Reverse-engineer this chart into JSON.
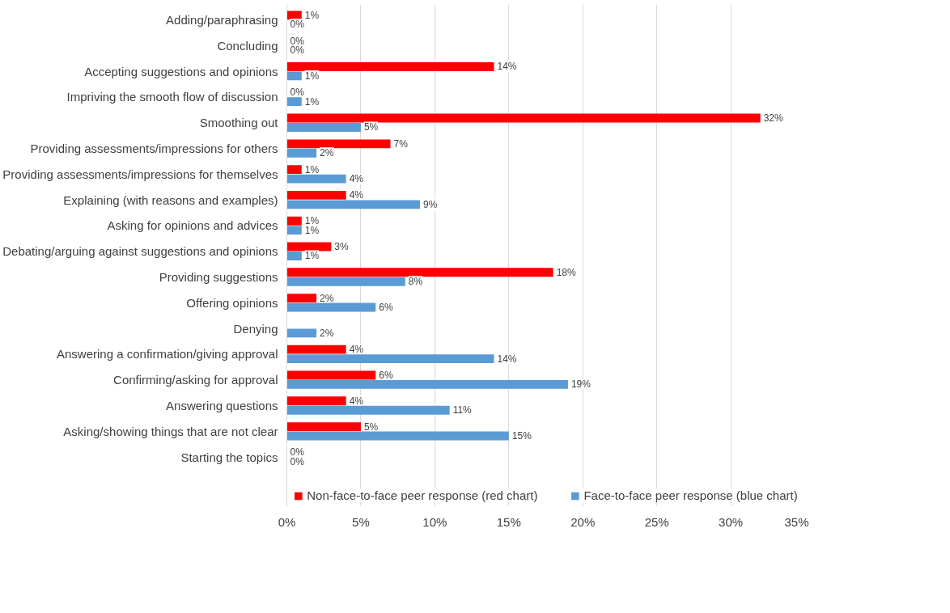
{
  "chart_data": {
    "type": "bar",
    "orientation": "horizontal",
    "categories": [
      "Adding/paraphrasing",
      "Concluding",
      "Accepting suggestions and opinions",
      "Impriving the smooth flow of discussion",
      "Smoothing out",
      "Providing assessments/impressions for others",
      "Providing assessments/impressions for themselves",
      "Explaining (with reasons and examples)",
      "Asking for opinions and advices",
      "Debating/arguing against suggestions and opinions",
      "Providing suggestions",
      "Offering opinions",
      "Denying",
      "Answering a confirmation/giving approval",
      "Confirming/asking for approval",
      "Answering questions",
      "Asking/showing things that are not clear",
      "Starting the topics"
    ],
    "series": [
      {
        "name": "Non-face-to-face peer response (red chart)",
        "color": "#ff0000",
        "values": [
          1,
          0,
          14,
          0,
          32,
          7,
          1,
          4,
          1,
          3,
          18,
          2,
          0,
          4,
          6,
          4,
          5,
          0
        ],
        "value_labels": [
          "1%",
          "0%",
          "14%",
          "0%",
          "32%",
          "7%",
          "1%",
          "4%",
          "1%",
          "3%",
          "18%",
          "2%",
          null,
          "4%",
          "6%",
          "4%",
          "5%",
          "0%"
        ]
      },
      {
        "name": "Face-to-face peer response (blue chart)",
        "color": "#5b9bd5",
        "values": [
          0,
          0,
          1,
          1,
          5,
          2,
          4,
          9,
          1,
          1,
          8,
          6,
          2,
          14,
          19,
          11,
          15,
          0
        ],
        "value_labels": [
          "0%",
          "0%",
          "1%",
          "1%",
          "5%",
          "2%",
          "4%",
          "9%",
          "1%",
          "1%",
          "8%",
          "6%",
          "2%",
          "14%",
          "19%",
          "11%",
          "15%",
          "0%"
        ]
      }
    ],
    "xlim": [
      0,
      35
    ],
    "xticks": [
      {
        "value": 0,
        "label": "0%"
      },
      {
        "value": 5,
        "label": "5%"
      },
      {
        "value": 10,
        "label": "10%"
      },
      {
        "value": 15,
        "label": "15%"
      },
      {
        "value": 20,
        "label": "20%"
      },
      {
        "value": 25,
        "label": "25%"
      },
      {
        "value": 30,
        "label": "30%"
      },
      {
        "value": 35,
        "label": "35%"
      }
    ],
    "grid": "x",
    "legend": "bottom"
  }
}
